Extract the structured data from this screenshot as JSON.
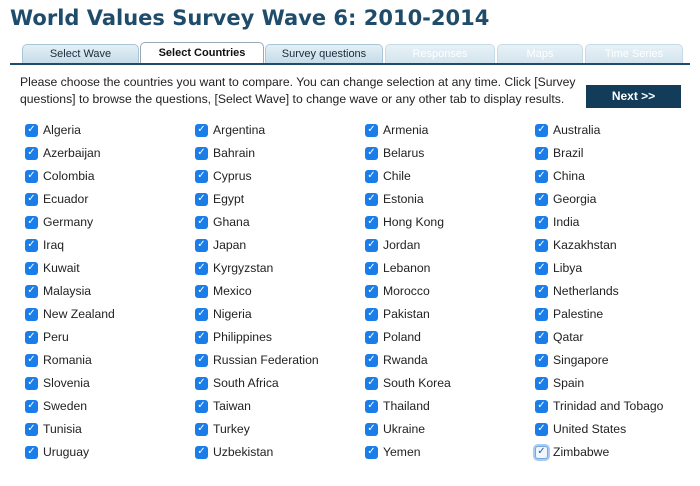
{
  "page": {
    "title": "World Values Survey Wave 6: 2010-2014"
  },
  "tabs": [
    {
      "label": "Select Wave",
      "state": "normal"
    },
    {
      "label": "Select Countries",
      "state": "active"
    },
    {
      "label": "Survey questions",
      "state": "normal"
    },
    {
      "label": "Responses",
      "state": "disabled"
    },
    {
      "label": "Maps",
      "state": "disabled"
    },
    {
      "label": "Time Series",
      "state": "disabled"
    }
  ],
  "instructions": "Please choose the countries you want to compare. You can change selection at any time. Click [Survey questions] to browse the questions, [Select Wave] to change wave or any other tab to display results.",
  "next_button": "Next >>",
  "colors": {
    "title": "#1f4c6b",
    "accent": "#123c5a",
    "checkbox": "#1a7de8"
  },
  "countries": [
    {
      "name": "Algeria",
      "checked": true
    },
    {
      "name": "Argentina",
      "checked": true
    },
    {
      "name": "Armenia",
      "checked": true
    },
    {
      "name": "Australia",
      "checked": true
    },
    {
      "name": "Azerbaijan",
      "checked": true
    },
    {
      "name": "Bahrain",
      "checked": true
    },
    {
      "name": "Belarus",
      "checked": true
    },
    {
      "name": "Brazil",
      "checked": true
    },
    {
      "name": "Colombia",
      "checked": true
    },
    {
      "name": "Cyprus",
      "checked": true
    },
    {
      "name": "Chile",
      "checked": true
    },
    {
      "name": "China",
      "checked": true
    },
    {
      "name": "Ecuador",
      "checked": true
    },
    {
      "name": "Egypt",
      "checked": true
    },
    {
      "name": "Estonia",
      "checked": true
    },
    {
      "name": "Georgia",
      "checked": true
    },
    {
      "name": "Germany",
      "checked": true
    },
    {
      "name": "Ghana",
      "checked": true
    },
    {
      "name": "Hong Kong",
      "checked": true
    },
    {
      "name": "India",
      "checked": true
    },
    {
      "name": "Iraq",
      "checked": true
    },
    {
      "name": "Japan",
      "checked": true
    },
    {
      "name": "Jordan",
      "checked": true
    },
    {
      "name": "Kazakhstan",
      "checked": true
    },
    {
      "name": "Kuwait",
      "checked": true
    },
    {
      "name": "Kyrgyzstan",
      "checked": true
    },
    {
      "name": "Lebanon",
      "checked": true
    },
    {
      "name": "Libya",
      "checked": true
    },
    {
      "name": "Malaysia",
      "checked": true
    },
    {
      "name": "Mexico",
      "checked": true
    },
    {
      "name": "Morocco",
      "checked": true
    },
    {
      "name": "Netherlands",
      "checked": true
    },
    {
      "name": "New Zealand",
      "checked": true
    },
    {
      "name": "Nigeria",
      "checked": true
    },
    {
      "name": "Pakistan",
      "checked": true
    },
    {
      "name": "Palestine",
      "checked": true
    },
    {
      "name": "Peru",
      "checked": true
    },
    {
      "name": "Philippines",
      "checked": true
    },
    {
      "name": "Poland",
      "checked": true
    },
    {
      "name": "Qatar",
      "checked": true
    },
    {
      "name": "Romania",
      "checked": true
    },
    {
      "name": "Russian Federation",
      "checked": true
    },
    {
      "name": "Rwanda",
      "checked": true
    },
    {
      "name": "Singapore",
      "checked": true
    },
    {
      "name": "Slovenia",
      "checked": true
    },
    {
      "name": "South Africa",
      "checked": true
    },
    {
      "name": "South Korea",
      "checked": true
    },
    {
      "name": "Spain",
      "checked": true
    },
    {
      "name": "Sweden",
      "checked": true
    },
    {
      "name": "Taiwan",
      "checked": true
    },
    {
      "name": "Thailand",
      "checked": true
    },
    {
      "name": "Trinidad and Tobago",
      "checked": true
    },
    {
      "name": "Tunisia",
      "checked": true
    },
    {
      "name": "Turkey",
      "checked": true
    },
    {
      "name": "Ukraine",
      "checked": true
    },
    {
      "name": "United States",
      "checked": true
    },
    {
      "name": "Uruguay",
      "checked": true
    },
    {
      "name": "Uzbekistan",
      "checked": true
    },
    {
      "name": "Yemen",
      "checked": true
    },
    {
      "name": "Zimbabwe",
      "checked": true,
      "focused": true
    }
  ]
}
